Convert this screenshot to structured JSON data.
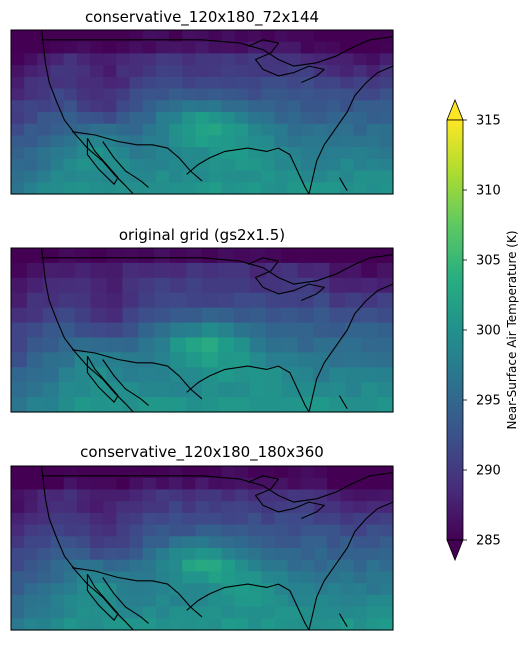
{
  "chart_data": {
    "type": "heatmap",
    "panels": [
      {
        "title": "conservative_120x180_72x144"
      },
      {
        "title": "original grid (gs2x1.5)"
      },
      {
        "title": "conservative_120x180_180x360"
      }
    ],
    "map_region": "contiguous United States",
    "map_extent": {
      "lon": [
        -125,
        -66
      ],
      "lat": [
        23,
        50
      ]
    },
    "colormap": "viridis",
    "colorbar": {
      "label": "Near-Surface Air Temperature (K)",
      "range": [
        285,
        315
      ],
      "ticks": [
        285,
        290,
        295,
        300,
        305,
        310,
        315
      ],
      "extend": "both",
      "placement": "right"
    }
  }
}
